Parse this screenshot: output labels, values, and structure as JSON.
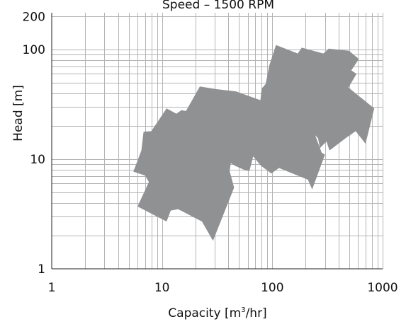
{
  "chart_data": {
    "type": "area",
    "title": "Speed – 1500 RPM",
    "xlabel_prefix": "Capacity [m",
    "xlabel_sup": "3",
    "xlabel_suffix": "/hr]",
    "ylabel": "Head [m]",
    "x_scale": "log",
    "y_scale": "log",
    "xlim": [
      1,
      1000
    ],
    "ylim": [
      1,
      200
    ],
    "x_ticks": [
      {
        "value": 1,
        "label": "1"
      },
      {
        "value": 10,
        "label": "10"
      },
      {
        "value": 100,
        "label": "100"
      },
      {
        "value": 1000,
        "label": "1000"
      }
    ],
    "y_ticks": [
      {
        "value": 1,
        "label": "1"
      },
      {
        "value": 10,
        "label": "10"
      },
      {
        "value": 100,
        "label": "100"
      },
      {
        "value": 200,
        "label": "200"
      }
    ],
    "grid": true,
    "colors": {
      "fill": "#8f9193",
      "grid": "#b4b4b4",
      "axis": "#222222"
    },
    "series": [
      {
        "points": [
          [
            5.5,
            7.7
          ],
          [
            6.5,
            12
          ],
          [
            6.8,
            17.8
          ],
          [
            8,
            18
          ],
          [
            11,
            29
          ],
          [
            13.5,
            26
          ],
          [
            15,
            28
          ],
          [
            16.5,
            27.5
          ],
          [
            22,
            46
          ],
          [
            31,
            43.5
          ],
          [
            47,
            41.5
          ],
          [
            62,
            37.5
          ],
          [
            78,
            34.5
          ],
          [
            80,
            44
          ],
          [
            87,
            48.5
          ],
          [
            94,
            72
          ],
          [
            108,
            110
          ],
          [
            170,
            92
          ],
          [
            185,
            104
          ],
          [
            290,
            92
          ],
          [
            325,
            102
          ],
          [
            495,
            97.5
          ],
          [
            610,
            82
          ],
          [
            520,
            64.5
          ],
          [
            580,
            60
          ],
          [
            490,
            45
          ],
          [
            840,
            29
          ],
          [
            700,
            13.8
          ],
          [
            570,
            18
          ],
          [
            505,
            16.5
          ],
          [
            480,
            16
          ],
          [
            330,
            12
          ],
          [
            310,
            14.5
          ],
          [
            270,
            12.6
          ],
          [
            260,
            15.5
          ],
          [
            245,
            16.5
          ],
          [
            280,
            11.5
          ],
          [
            300,
            11
          ],
          [
            230,
            5.3
          ],
          [
            210,
            6.5
          ],
          [
            115,
            8.3
          ],
          [
            98,
            7.4
          ],
          [
            79,
            8.7
          ],
          [
            67,
            10.6
          ],
          [
            62,
            7.8
          ],
          [
            57,
            7.9
          ],
          [
            46,
            8.7
          ],
          [
            42,
            9.2
          ],
          [
            41,
            7.8
          ],
          [
            45,
            5.5
          ],
          [
            29,
            1.8
          ],
          [
            23,
            2.7
          ],
          [
            14,
            3.5
          ],
          [
            12,
            3.4
          ],
          [
            11,
            2.7
          ],
          [
            6,
            3.7
          ],
          [
            7.6,
            6.2
          ],
          [
            7,
            7.1
          ]
        ]
      }
    ]
  }
}
